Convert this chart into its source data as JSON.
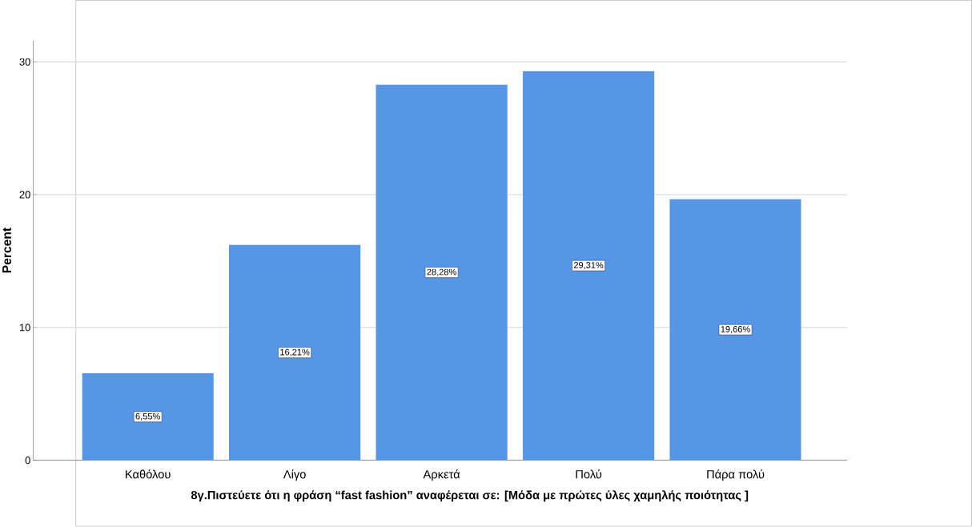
{
  "chart_data": {
    "type": "bar",
    "xlabel": "8γ.Πιστεύετε ότι  η φράση “fast fashion” αναφέρεται σε: [Μόδα με πρώτες ύλες χαμηλής ποιότητας ]",
    "ylabel": "Percent",
    "categories": [
      "Καθόλου",
      "Λίγο",
      "Αρκετά",
      "Πολύ",
      "Πάρα πολύ"
    ],
    "values": [
      6.55,
      16.21,
      28.28,
      29.31,
      19.66
    ],
    "value_labels": [
      "6,55%",
      "16,21%",
      "28,28%",
      "29,31%",
      "19,66%"
    ],
    "color": "#5596e6",
    "ylim": [
      0,
      31.6
    ],
    "yticks": [
      0,
      10,
      20,
      30
    ],
    "grid": "y"
  }
}
